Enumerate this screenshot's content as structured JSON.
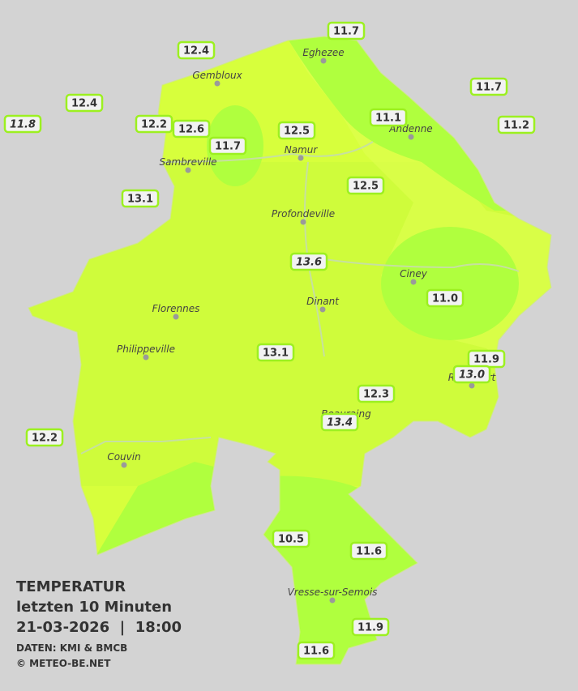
{
  "legend": {
    "title": "TEMPERATUR",
    "period": "letzten 10 Minuten",
    "datetime": "21-03-2026  |  18:00",
    "source": "DATEN: KMI & BMCB",
    "copyright": "© METEO-BE.NET"
  },
  "cities": [
    "Eghezee",
    "Gembloux",
    "Andenne",
    "Sambreville",
    "Namur",
    "Profondeville",
    "Ciney",
    "Dinant",
    "Florennes",
    "Philippeville",
    "Rochefort",
    "Beauraing",
    "Couvin",
    "Vresse-sur-Semois"
  ],
  "stations": [
    "12.4",
    "11.7",
    "12.4",
    "11.7",
    "11.8",
    "12.2",
    "12.6",
    "11.1",
    "11.2",
    "12.5",
    "11.7",
    "13.1",
    "12.5",
    "13.6",
    "11.0",
    "13.1",
    "11.9",
    "13.0",
    "12.3",
    "13.4",
    "12.2",
    "10.5",
    "11.6",
    "11.9",
    "11.6"
  ]
}
